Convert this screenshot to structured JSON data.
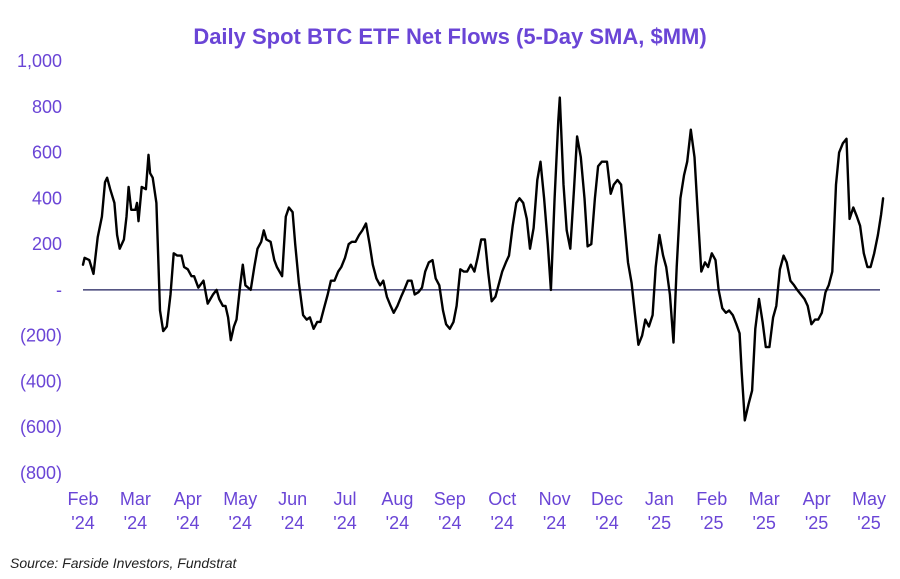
{
  "chart_data": {
    "type": "line",
    "title": "Daily Spot BTC ETF Net Flows (5-Day SMA, $MM)",
    "xlabel": "",
    "ylabel": "",
    "source": "Source: Farside Investors, Fundstrat",
    "ylim": [
      -800,
      1000
    ],
    "y_ticks": [
      {
        "value": 1000,
        "label": "1,000"
      },
      {
        "value": 800,
        "label": "800"
      },
      {
        "value": 600,
        "label": "600"
      },
      {
        "value": 400,
        "label": "400"
      },
      {
        "value": 200,
        "label": "200"
      },
      {
        "value": 0,
        "label": "-"
      },
      {
        "value": -200,
        "label": "(200)"
      },
      {
        "value": -400,
        "label": "(400)"
      },
      {
        "value": -600,
        "label": "(600)"
      },
      {
        "value": -800,
        "label": "(800)"
      }
    ],
    "x_ticks": [
      {
        "month": "Feb",
        "year": "'24"
      },
      {
        "month": "Mar",
        "year": "'24"
      },
      {
        "month": "Apr",
        "year": "'24"
      },
      {
        "month": "May",
        "year": "'24"
      },
      {
        "month": "Jun",
        "year": "'24"
      },
      {
        "month": "Jul",
        "year": "'24"
      },
      {
        "month": "Aug",
        "year": "'24"
      },
      {
        "month": "Sep",
        "year": "'24"
      },
      {
        "month": "Oct",
        "year": "'24"
      },
      {
        "month": "Nov",
        "year": "'24"
      },
      {
        "month": "Dec",
        "year": "'24"
      },
      {
        "month": "Jan",
        "year": "'25"
      },
      {
        "month": "Feb",
        "year": "'25"
      },
      {
        "month": "Mar",
        "year": "'25"
      },
      {
        "month": "Apr",
        "year": "'25"
      },
      {
        "month": "May",
        "year": "'25"
      }
    ],
    "x_range": [
      0,
      16.55
    ],
    "zero_line": true,
    "series": [
      {
        "name": "5-Day SMA Net Flows ($MM)",
        "color": "#000000",
        "points": [
          [
            0.0,
            110
          ],
          [
            0.03,
            140
          ],
          [
            0.12,
            130
          ],
          [
            0.2,
            70
          ],
          [
            0.28,
            230
          ],
          [
            0.36,
            320
          ],
          [
            0.42,
            470
          ],
          [
            0.46,
            490
          ],
          [
            0.52,
            440
          ],
          [
            0.6,
            380
          ],
          [
            0.65,
            240
          ],
          [
            0.7,
            180
          ],
          [
            0.78,
            220
          ],
          [
            0.83,
            320
          ],
          [
            0.87,
            450
          ],
          [
            0.92,
            350
          ],
          [
            1.0,
            350
          ],
          [
            1.03,
            380
          ],
          [
            1.06,
            300
          ],
          [
            1.12,
            450
          ],
          [
            1.2,
            440
          ],
          [
            1.25,
            590
          ],
          [
            1.28,
            510
          ],
          [
            1.33,
            490
          ],
          [
            1.4,
            380
          ],
          [
            1.47,
            -90
          ],
          [
            1.53,
            -180
          ],
          [
            1.6,
            -160
          ],
          [
            1.67,
            -20
          ],
          [
            1.73,
            160
          ],
          [
            1.8,
            150
          ],
          [
            1.88,
            150
          ],
          [
            1.93,
            100
          ],
          [
            2.0,
            90
          ],
          [
            2.07,
            60
          ],
          [
            2.12,
            60
          ],
          [
            2.2,
            10
          ],
          [
            2.3,
            40
          ],
          [
            2.38,
            -60
          ],
          [
            2.48,
            -20
          ],
          [
            2.55,
            0
          ],
          [
            2.6,
            -40
          ],
          [
            2.67,
            -70
          ],
          [
            2.72,
            -70
          ],
          [
            2.77,
            -120
          ],
          [
            2.82,
            -220
          ],
          [
            2.88,
            -160
          ],
          [
            2.93,
            -130
          ],
          [
            3.0,
            20
          ],
          [
            3.05,
            110
          ],
          [
            3.1,
            20
          ],
          [
            3.2,
            0
          ],
          [
            3.27,
            100
          ],
          [
            3.33,
            180
          ],
          [
            3.4,
            210
          ],
          [
            3.45,
            260
          ],
          [
            3.5,
            220
          ],
          [
            3.58,
            210
          ],
          [
            3.65,
            130
          ],
          [
            3.7,
            100
          ],
          [
            3.8,
            60
          ],
          [
            3.87,
            320
          ],
          [
            3.93,
            360
          ],
          [
            4.0,
            340
          ],
          [
            4.05,
            200
          ],
          [
            4.12,
            30
          ],
          [
            4.2,
            -110
          ],
          [
            4.27,
            -130
          ],
          [
            4.33,
            -120
          ],
          [
            4.4,
            -170
          ],
          [
            4.47,
            -140
          ],
          [
            4.53,
            -140
          ],
          [
            4.6,
            -80
          ],
          [
            4.67,
            -20
          ],
          [
            4.73,
            40
          ],
          [
            4.8,
            40
          ],
          [
            4.87,
            80
          ],
          [
            4.93,
            100
          ],
          [
            5.0,
            140
          ],
          [
            5.07,
            200
          ],
          [
            5.13,
            210
          ],
          [
            5.2,
            210
          ],
          [
            5.27,
            240
          ],
          [
            5.33,
            260
          ],
          [
            5.4,
            290
          ],
          [
            5.47,
            200
          ],
          [
            5.53,
            110
          ],
          [
            5.6,
            50
          ],
          [
            5.67,
            20
          ],
          [
            5.73,
            40
          ],
          [
            5.8,
            -30
          ],
          [
            5.87,
            -70
          ],
          [
            5.93,
            -100
          ],
          [
            6.0,
            -70
          ],
          [
            6.07,
            -30
          ],
          [
            6.13,
            0
          ],
          [
            6.2,
            40
          ],
          [
            6.27,
            40
          ],
          [
            6.33,
            -20
          ],
          [
            6.4,
            -10
          ],
          [
            6.47,
            10
          ],
          [
            6.53,
            80
          ],
          [
            6.6,
            120
          ],
          [
            6.67,
            130
          ],
          [
            6.73,
            50
          ],
          [
            6.8,
            20
          ],
          [
            6.87,
            -90
          ],
          [
            6.93,
            -150
          ],
          [
            7.0,
            -170
          ],
          [
            7.07,
            -140
          ],
          [
            7.13,
            -70
          ],
          [
            7.2,
            90
          ],
          [
            7.27,
            80
          ],
          [
            7.33,
            80
          ],
          [
            7.4,
            110
          ],
          [
            7.47,
            80
          ],
          [
            7.53,
            140
          ],
          [
            7.6,
            220
          ],
          [
            7.67,
            220
          ],
          [
            7.73,
            80
          ],
          [
            7.8,
            -50
          ],
          [
            7.87,
            -30
          ],
          [
            7.93,
            20
          ],
          [
            8.0,
            80
          ],
          [
            8.07,
            120
          ],
          [
            8.13,
            150
          ],
          [
            8.2,
            280
          ],
          [
            8.27,
            380
          ],
          [
            8.33,
            400
          ],
          [
            8.4,
            380
          ],
          [
            8.47,
            310
          ],
          [
            8.53,
            180
          ],
          [
            8.6,
            270
          ],
          [
            8.67,
            480
          ],
          [
            8.73,
            560
          ],
          [
            8.8,
            400
          ],
          [
            8.87,
            200
          ],
          [
            8.93,
            0
          ],
          [
            9.0,
            400
          ],
          [
            9.07,
            740
          ],
          [
            9.1,
            840
          ],
          [
            9.17,
            460
          ],
          [
            9.23,
            260
          ],
          [
            9.3,
            180
          ],
          [
            9.37,
            440
          ],
          [
            9.43,
            670
          ],
          [
            9.5,
            580
          ],
          [
            9.57,
            400
          ],
          [
            9.63,
            190
          ],
          [
            9.7,
            200
          ],
          [
            9.77,
            400
          ],
          [
            9.83,
            540
          ],
          [
            9.9,
            560
          ],
          [
            10.0,
            560
          ],
          [
            10.07,
            420
          ],
          [
            10.13,
            460
          ],
          [
            10.2,
            480
          ],
          [
            10.27,
            460
          ],
          [
            10.33,
            300
          ],
          [
            10.4,
            120
          ],
          [
            10.47,
            30
          ],
          [
            10.53,
            -100
          ],
          [
            10.6,
            -240
          ],
          [
            10.67,
            -200
          ],
          [
            10.73,
            -130
          ],
          [
            10.8,
            -160
          ],
          [
            10.87,
            -110
          ],
          [
            10.93,
            100
          ],
          [
            11.0,
            240
          ],
          [
            11.07,
            150
          ],
          [
            11.13,
            100
          ],
          [
            11.2,
            -20
          ],
          [
            11.27,
            -230
          ],
          [
            11.33,
            100
          ],
          [
            11.4,
            400
          ],
          [
            11.47,
            500
          ],
          [
            11.53,
            560
          ],
          [
            11.6,
            700
          ],
          [
            11.67,
            580
          ],
          [
            11.73,
            340
          ],
          [
            11.8,
            80
          ],
          [
            11.87,
            120
          ],
          [
            11.93,
            100
          ],
          [
            12.0,
            160
          ],
          [
            12.07,
            130
          ],
          [
            12.13,
            0
          ],
          [
            12.2,
            -80
          ],
          [
            12.27,
            -100
          ],
          [
            12.33,
            -90
          ],
          [
            12.4,
            -110
          ],
          [
            12.47,
            -150
          ],
          [
            12.53,
            -190
          ],
          [
            12.57,
            -360
          ],
          [
            12.63,
            -570
          ],
          [
            12.7,
            -500
          ],
          [
            12.77,
            -440
          ],
          [
            12.83,
            -170
          ],
          [
            12.9,
            -40
          ],
          [
            12.97,
            -140
          ],
          [
            13.03,
            -250
          ],
          [
            13.1,
            -250
          ],
          [
            13.17,
            -120
          ],
          [
            13.23,
            -70
          ],
          [
            13.3,
            90
          ],
          [
            13.37,
            150
          ],
          [
            13.43,
            120
          ],
          [
            13.5,
            40
          ],
          [
            13.57,
            20
          ],
          [
            13.63,
            0
          ],
          [
            13.7,
            -20
          ],
          [
            13.77,
            -40
          ],
          [
            13.83,
            -70
          ],
          [
            13.9,
            -150
          ],
          [
            13.97,
            -130
          ],
          [
            14.03,
            -130
          ],
          [
            14.1,
            -100
          ],
          [
            14.17,
            -10
          ],
          [
            14.23,
            20
          ],
          [
            14.3,
            80
          ],
          [
            14.37,
            460
          ],
          [
            14.43,
            600
          ],
          [
            14.5,
            640
          ],
          [
            14.57,
            660
          ],
          [
            14.63,
            310
          ],
          [
            14.7,
            360
          ],
          [
            14.77,
            320
          ],
          [
            14.83,
            280
          ],
          [
            14.9,
            160
          ],
          [
            14.97,
            100
          ],
          [
            15.03,
            100
          ],
          [
            15.1,
            160
          ],
          [
            15.17,
            240
          ],
          [
            15.23,
            330
          ],
          [
            15.27,
            400
          ]
        ]
      }
    ]
  }
}
